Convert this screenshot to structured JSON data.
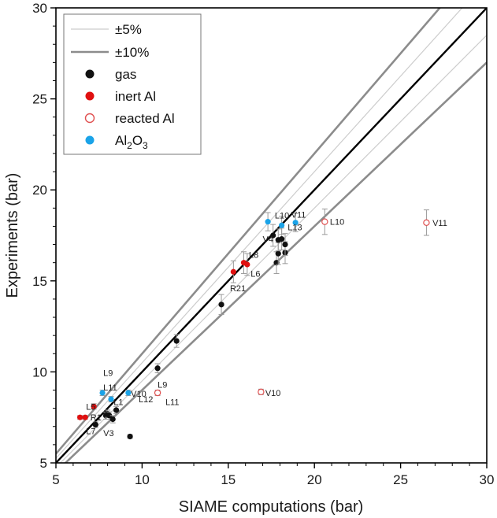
{
  "chart_data": {
    "type": "scatter",
    "xlabel": "SIAME computations (bar)",
    "ylabel": "Experiments (bar)",
    "xlim": [
      5,
      30
    ],
    "ylim": [
      5,
      30
    ],
    "xticks": [
      5,
      10,
      15,
      20,
      25,
      30
    ],
    "yticks": [
      5,
      10,
      15,
      20,
      25,
      30
    ],
    "grid": false,
    "legend_position": "top-left",
    "legend": [
      {
        "key": "tol5",
        "label": "±5%"
      },
      {
        "key": "tol10",
        "label": "±10%"
      },
      {
        "key": "gas",
        "label": "gas"
      },
      {
        "key": "inert",
        "label": "inert Al"
      },
      {
        "key": "reacted",
        "label": "reacted Al"
      },
      {
        "key": "al2o3",
        "label": "Al",
        "sub": "2",
        "mid": "O",
        "sub2": "3"
      }
    ],
    "colors": {
      "gas": "#111111",
      "inert": "#e01010",
      "reacted": "#e05050",
      "al2o3": "#1aa3e8",
      "tol5": "#cccccc",
      "tol10": "#8c8c8c",
      "parity": "#000000",
      "errorbar": "#999999"
    },
    "reference_lines": [
      {
        "key": "parity",
        "slope": 1.0
      },
      {
        "key": "tol5",
        "slope": 1.05
      },
      {
        "key": "tol5",
        "slope": 0.95
      },
      {
        "key": "tol10",
        "slope": 1.1
      },
      {
        "key": "tol10",
        "slope": 0.9
      }
    ],
    "series": [
      {
        "key": "gas",
        "points": [
          {
            "x": 7.3,
            "y": 7.1,
            "err": 0.15
          },
          {
            "x": 7.9,
            "y": 7.6,
            "err": 0.2
          },
          {
            "x": 8.0,
            "y": 7.7,
            "err": 0.2
          },
          {
            "x": 8.1,
            "y": 7.6,
            "err": 0.2
          },
          {
            "x": 8.3,
            "y": 7.4,
            "err": 0.2
          },
          {
            "x": 8.5,
            "y": 7.9,
            "err": 0.2
          },
          {
            "x": 9.3,
            "y": 6.45,
            "err": 0.1
          },
          {
            "x": 10.9,
            "y": 10.2,
            "err": 0.25
          },
          {
            "x": 12.0,
            "y": 11.7,
            "err": 0.35
          },
          {
            "x": 14.6,
            "y": 13.7,
            "err": 0.55
          },
          {
            "x": 17.6,
            "y": 17.5,
            "err": 0.6
          },
          {
            "x": 17.8,
            "y": 16.0,
            "err": 0.6
          },
          {
            "x": 17.9,
            "y": 16.5,
            "err": 0.6
          },
          {
            "x": 17.9,
            "y": 17.25,
            "err": 0.6
          },
          {
            "x": 18.1,
            "y": 17.3,
            "err": 0.6
          },
          {
            "x": 18.3,
            "y": 16.55,
            "err": 0.6
          },
          {
            "x": 18.3,
            "y": 17.0,
            "err": 0.6
          }
        ]
      },
      {
        "key": "inert",
        "points": [
          {
            "x": 6.4,
            "y": 7.5,
            "err": 0.1
          },
          {
            "x": 6.7,
            "y": 7.5,
            "err": 0.1
          },
          {
            "x": 7.2,
            "y": 8.1,
            "err": 0.15
          },
          {
            "x": 15.3,
            "y": 15.5,
            "err": 0.6
          },
          {
            "x": 15.9,
            "y": 16.0,
            "err": 0.6
          },
          {
            "x": 16.1,
            "y": 15.9,
            "err": 0.6
          }
        ]
      },
      {
        "key": "reacted",
        "points": [
          {
            "x": 10.9,
            "y": 8.85,
            "err": 0.15
          },
          {
            "x": 16.9,
            "y": 8.9,
            "err": 0.15
          },
          {
            "x": 20.6,
            "y": 18.25,
            "err": 0.7
          },
          {
            "x": 26.5,
            "y": 18.2,
            "err": 0.7
          }
        ]
      },
      {
        "key": "al2o3",
        "points": [
          {
            "x": 7.7,
            "y": 8.85,
            "err": 0.15
          },
          {
            "x": 8.2,
            "y": 8.5,
            "err": 0.15
          },
          {
            "x": 9.2,
            "y": 8.85,
            "err": 0.15
          },
          {
            "x": 17.3,
            "y": 18.25,
            "err": 0.5
          },
          {
            "x": 18.1,
            "y": 18.05,
            "err": 0.5
          },
          {
            "x": 18.9,
            "y": 18.2,
            "err": 0.5
          }
        ]
      }
    ],
    "annotations": [
      {
        "text": "L9",
        "x": 7.75,
        "y": 9.95
      },
      {
        "text": "L5",
        "x": 6.75,
        "y": 8.1
      },
      {
        "text": "L11",
        "x": 7.75,
        "y": 9.15
      },
      {
        "text": "L1",
        "x": 8.35,
        "y": 8.35
      },
      {
        "text": "V10",
        "x": 9.35,
        "y": 8.8
      },
      {
        "text": "L12",
        "x": 9.8,
        "y": 8.5
      },
      {
        "text": "R1",
        "x": 7.0,
        "y": 7.5
      },
      {
        "text": "L7",
        "x": 6.75,
        "y": 6.75
      },
      {
        "text": "V3",
        "x": 7.75,
        "y": 6.65
      },
      {
        "text": "L9",
        "x": 10.9,
        "y": 9.3
      },
      {
        "text": "L11",
        "x": 11.35,
        "y": 8.35
      },
      {
        "text": "V10",
        "x": 17.15,
        "y": 8.85
      },
      {
        "text": "L10",
        "x": 17.7,
        "y": 18.6
      },
      {
        "text": "V11",
        "x": 18.65,
        "y": 18.65
      },
      {
        "text": "L13",
        "x": 18.45,
        "y": 17.95
      },
      {
        "text": "L10",
        "x": 20.9,
        "y": 18.25
      },
      {
        "text": "V11",
        "x": 26.85,
        "y": 18.2
      },
      {
        "text": "V4",
        "x": 17.0,
        "y": 17.3
      },
      {
        "text": "L8",
        "x": 16.2,
        "y": 16.45
      },
      {
        "text": "L6",
        "x": 16.3,
        "y": 15.4
      },
      {
        "text": "R21",
        "x": 15.1,
        "y": 14.6
      }
    ]
  }
}
